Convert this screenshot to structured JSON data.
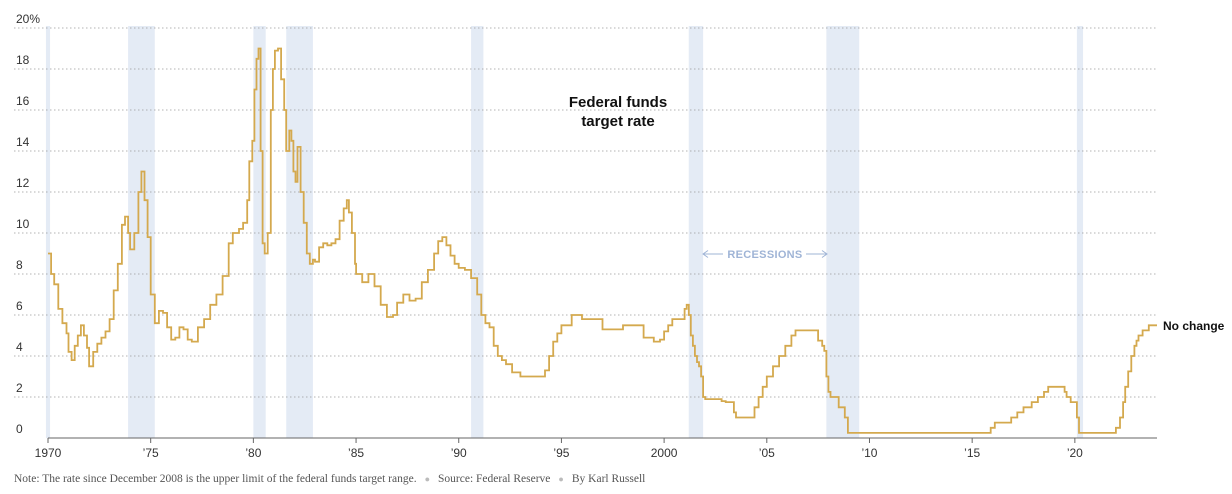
{
  "colors": {
    "line": "#d4a94e",
    "recession": "#e4ebf5",
    "grid": "#9a9a9a",
    "axis": "#666666",
    "recession_label": "#9fb4d6"
  },
  "chart_data": {
    "type": "line",
    "title": "Federal funds target rate",
    "title_lines": [
      "Federal funds",
      "target rate"
    ],
    "ylabel": "",
    "xlabel": "",
    "ylim": [
      0,
      20
    ],
    "xlim": [
      1969.9,
      2024.1
    ],
    "y_ticks": [
      0,
      2,
      4,
      6,
      8,
      10,
      12,
      14,
      16,
      18,
      20
    ],
    "y_tick_labels": [
      "0",
      "2",
      "4",
      "6",
      "8",
      "10",
      "12",
      "14",
      "16",
      "18",
      "20%"
    ],
    "x_ticks": [
      1970,
      1975,
      1980,
      1985,
      1990,
      1995,
      2000,
      2005,
      2010,
      2015,
      2020
    ],
    "x_tick_labels": [
      "1970",
      "’75",
      "’80",
      "’85",
      "’90",
      "’95",
      "2000",
      "’05",
      "’10",
      "’15",
      "’20"
    ],
    "recessions": [
      [
        1969.9,
        1970.1
      ],
      [
        1973.9,
        1975.2
      ],
      [
        1980.0,
        1980.6
      ],
      [
        1981.6,
        1982.9
      ],
      [
        1990.6,
        1991.2
      ],
      [
        2001.2,
        2001.9
      ],
      [
        2007.9,
        2009.5
      ],
      [
        2020.1,
        2020.4
      ]
    ],
    "recession_label": "RECESSIONS",
    "end_label": "No change",
    "series": [
      {
        "name": "Federal funds target rate",
        "x": [
          1970.0,
          1970.15,
          1970.3,
          1970.5,
          1970.7,
          1970.9,
          1971.0,
          1971.15,
          1971.3,
          1971.45,
          1971.6,
          1971.75,
          1971.9,
          1972.0,
          1972.2,
          1972.4,
          1972.6,
          1972.8,
          1973.0,
          1973.2,
          1973.4,
          1973.6,
          1973.75,
          1973.9,
          1974.0,
          1974.2,
          1974.4,
          1974.55,
          1974.7,
          1974.85,
          1975.0,
          1975.2,
          1975.4,
          1975.6,
          1975.8,
          1976.0,
          1976.2,
          1976.4,
          1976.6,
          1976.8,
          1977.0,
          1977.3,
          1977.6,
          1977.9,
          1978.2,
          1978.5,
          1978.8,
          1979.0,
          1979.3,
          1979.5,
          1979.7,
          1979.8,
          1979.95,
          1980.05,
          1980.15,
          1980.25,
          1980.35,
          1980.45,
          1980.55,
          1980.7,
          1980.85,
          1980.95,
          1981.05,
          1981.2,
          1981.35,
          1981.5,
          1981.6,
          1981.75,
          1981.85,
          1981.95,
          1982.05,
          1982.15,
          1982.3,
          1982.45,
          1982.6,
          1982.75,
          1982.9,
          1983.0,
          1983.2,
          1983.4,
          1983.6,
          1983.8,
          1984.0,
          1984.2,
          1984.4,
          1984.55,
          1984.65,
          1984.8,
          1984.95,
          1985.0,
          1985.3,
          1985.6,
          1985.9,
          1986.2,
          1986.5,
          1986.8,
          1987.0,
          1987.3,
          1987.6,
          1987.9,
          1988.2,
          1988.5,
          1988.8,
          1989.0,
          1989.2,
          1989.4,
          1989.6,
          1989.8,
          1990.0,
          1990.3,
          1990.6,
          1990.9,
          1991.1,
          1991.3,
          1991.5,
          1991.7,
          1991.9,
          1992.1,
          1992.3,
          1992.6,
          1993.0,
          1993.5,
          1994.0,
          1994.2,
          1994.4,
          1994.6,
          1994.8,
          1995.0,
          1995.5,
          1996.0,
          1997.0,
          1997.5,
          1998.0,
          1998.7,
          1998.9,
          1999.0,
          1999.5,
          1999.8,
          2000.0,
          2000.2,
          2000.4,
          2001.0,
          2001.1,
          2001.2,
          2001.3,
          2001.4,
          2001.5,
          2001.6,
          2001.7,
          2001.8,
          2001.9,
          2002.0,
          2002.8,
          2003.0,
          2003.4,
          2003.5,
          2004.0,
          2004.4,
          2004.6,
          2004.8,
          2005.0,
          2005.3,
          2005.6,
          2005.9,
          2006.2,
          2006.4,
          2006.6,
          2007.5,
          2007.7,
          2007.8,
          2007.9,
          2008.0,
          2008.1,
          2008.3,
          2008.5,
          2008.8,
          2008.95,
          2009.1,
          2010.0,
          2012.0,
          2014.0,
          2015.9,
          2016.1,
          2016.9,
          2017.2,
          2017.5,
          2017.9,
          2018.2,
          2018.5,
          2018.7,
          2018.9,
          2019.5,
          2019.6,
          2019.8,
          2020.1,
          2020.2,
          2020.3,
          2021.0,
          2022.0,
          2022.2,
          2022.35,
          2022.45,
          2022.6,
          2022.75,
          2022.9,
          2023.0,
          2023.1,
          2023.3,
          2023.6,
          2024.0
        ],
        "values": [
          9.0,
          8.0,
          7.5,
          6.3,
          5.6,
          5.1,
          4.2,
          3.8,
          4.5,
          5.0,
          5.5,
          5.0,
          4.4,
          3.5,
          4.2,
          4.6,
          4.9,
          5.2,
          5.8,
          7.2,
          8.5,
          10.4,
          10.8,
          10.0,
          9.2,
          10.0,
          12.0,
          13.0,
          11.6,
          9.8,
          7.0,
          5.6,
          6.2,
          6.1,
          5.4,
          4.8,
          4.9,
          5.4,
          5.3,
          4.8,
          4.7,
          5.4,
          5.8,
          6.5,
          7.0,
          7.9,
          9.5,
          10.0,
          10.2,
          10.5,
          11.6,
          13.5,
          14.5,
          17.0,
          18.5,
          19.0,
          14.0,
          9.5,
          9.0,
          10.0,
          16.0,
          18.0,
          18.9,
          19.0,
          17.5,
          16.0,
          14.0,
          15.0,
          14.5,
          13.0,
          12.5,
          14.2,
          12.0,
          10.5,
          9.0,
          8.5,
          8.7,
          8.6,
          9.3,
          9.5,
          9.4,
          9.5,
          9.7,
          10.6,
          11.2,
          11.6,
          11.0,
          10.0,
          8.5,
          8.0,
          7.6,
          8.0,
          7.4,
          6.5,
          5.9,
          6.0,
          6.6,
          7.0,
          6.7,
          6.8,
          7.6,
          8.2,
          9.0,
          9.6,
          9.8,
          9.4,
          8.9,
          8.5,
          8.3,
          8.2,
          7.8,
          7.0,
          6.0,
          5.6,
          5.4,
          4.5,
          4.0,
          3.8,
          3.6,
          3.2,
          3.0,
          3.0,
          3.0,
          3.3,
          4.0,
          4.7,
          5.1,
          5.5,
          6.0,
          5.8,
          5.3,
          5.3,
          5.5,
          5.5,
          5.5,
          4.9,
          4.7,
          4.8,
          5.2,
          5.5,
          5.8,
          6.3,
          6.5,
          6.0,
          5.0,
          4.5,
          4.0,
          3.7,
          3.5,
          3.0,
          2.0,
          1.9,
          1.8,
          1.75,
          1.25,
          1.0,
          1.0,
          1.5,
          2.0,
          2.5,
          3.0,
          3.5,
          4.0,
          4.5,
          5.0,
          5.25,
          5.25,
          4.75,
          4.5,
          4.25,
          3.0,
          2.25,
          2.0,
          2.0,
          1.5,
          1.0,
          0.25,
          0.25,
          0.25,
          0.25,
          0.25,
          0.5,
          0.75,
          1.0,
          1.25,
          1.5,
          1.75,
          2.0,
          2.25,
          2.5,
          2.5,
          2.25,
          2.0,
          1.75,
          1.0,
          0.25,
          0.25,
          0.25,
          0.5,
          1.0,
          1.75,
          2.5,
          3.25,
          4.0,
          4.5,
          4.75,
          5.0,
          5.25,
          5.5,
          5.5
        ]
      }
    ]
  },
  "footer": {
    "note": "Note: The rate since December 2008 is the upper limit of the federal funds target range.",
    "source": "Source: Federal Reserve",
    "byline": "By Karl Russell"
  }
}
